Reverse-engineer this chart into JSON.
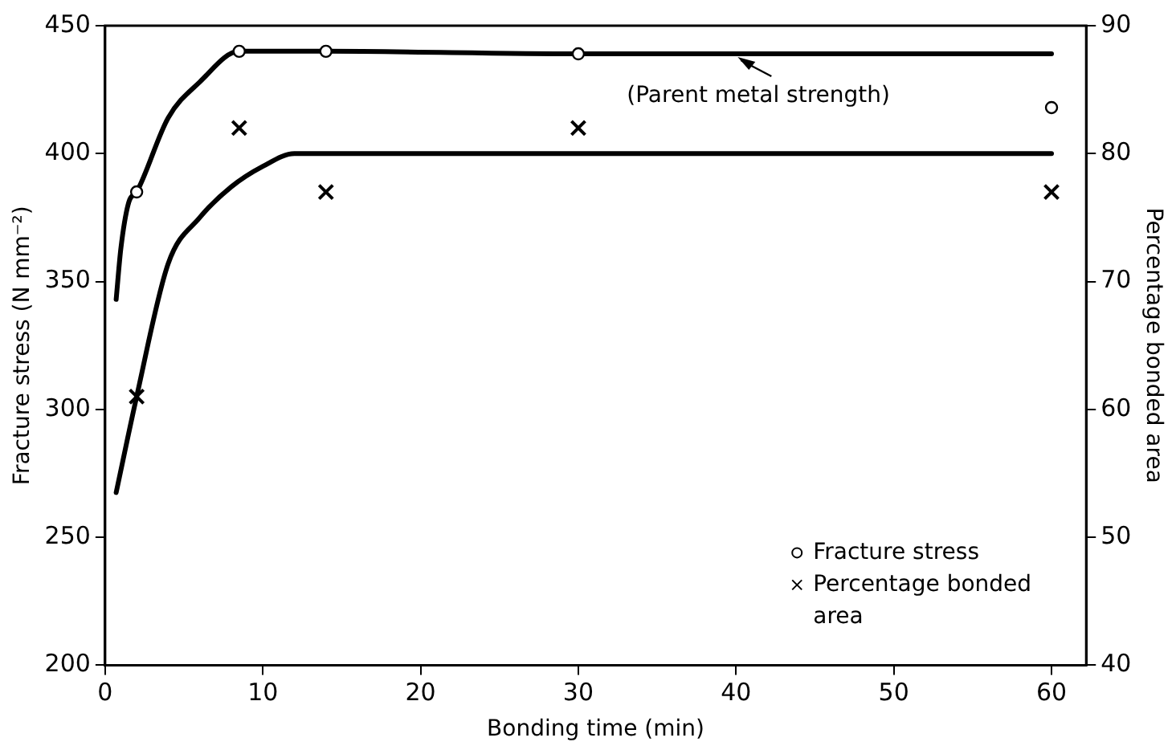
{
  "chart_data": {
    "type": "scatter",
    "xlabel": "Bonding time (min)",
    "ylabel": "Fracture stress (N mm⁻²)",
    "y2label": "Percentage bonded area",
    "xlim": [
      0,
      62.2
    ],
    "xticks": [
      0,
      10,
      20,
      30,
      40,
      50,
      60
    ],
    "ylim": [
      200,
      450
    ],
    "yticks": [
      200,
      250,
      300,
      350,
      400,
      450
    ],
    "y2lim": [
      40,
      90
    ],
    "y2ticks": [
      40,
      50,
      60,
      70,
      80,
      90
    ],
    "legend": "bottom right",
    "annotations": [
      {
        "text": "(Parent metal strength)",
        "x": 40,
        "y": 439
      }
    ],
    "series": [
      {
        "name": "Fracture stress",
        "marker": "circle",
        "color": "#000000",
        "x": [
          2,
          8.5,
          14,
          30,
          60
        ],
        "values": [
          385,
          440,
          440,
          439,
          418
        ]
      },
      {
        "name": "Percentage bonded area",
        "marker": "cross",
        "axis": "y2",
        "color": "#000000",
        "x": [
          2,
          8.5,
          14,
          30,
          60
        ],
        "values": [
          61,
          82,
          77,
          82,
          77
        ]
      },
      {
        "type": "line",
        "marker": "none",
        "color": "#000000",
        "x": [
          0.7,
          1,
          1.5,
          2,
          4,
          6,
          8.5,
          14,
          30,
          60
        ],
        "values": [
          343,
          363,
          381,
          385,
          414,
          428,
          440,
          440,
          439,
          439
        ]
      },
      {
        "type": "line",
        "marker": "none",
        "axis": "y2",
        "color": "#000000",
        "x": [
          0.7,
          2,
          4,
          6,
          8,
          10,
          12,
          60
        ],
        "values": [
          53.5,
          61,
          71.4,
          75,
          77.4,
          79,
          80,
          80
        ]
      }
    ]
  }
}
